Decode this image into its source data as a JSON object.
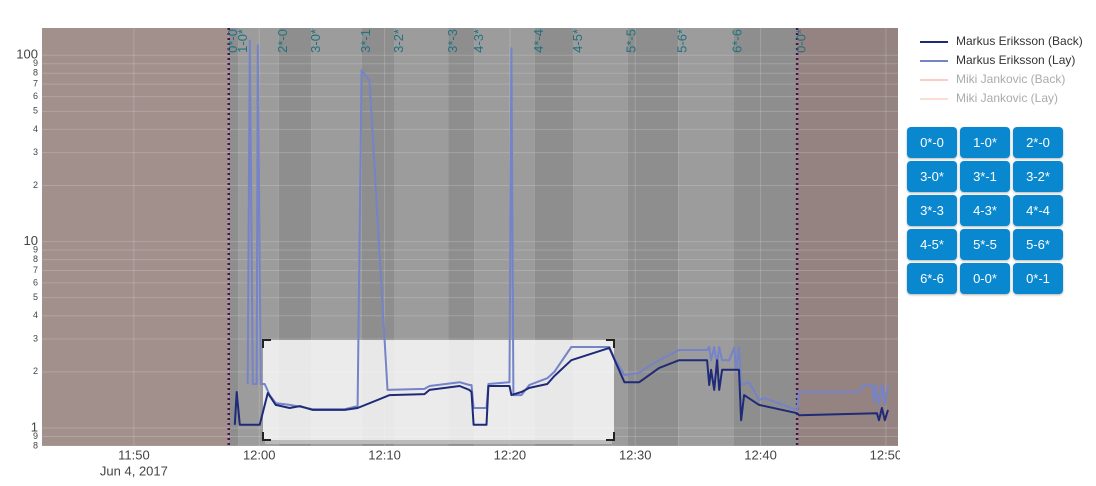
{
  "chart_data": {
    "type": "line",
    "yscale": "log",
    "ylim": [
      0.8,
      140
    ],
    "yticks": [
      100,
      {
        "value": 90,
        "label": "9"
      },
      {
        "value": 80,
        "label": "8"
      },
      {
        "value": 70,
        "label": "7"
      },
      {
        "value": 60,
        "label": "6"
      },
      {
        "value": 50,
        "label": "5"
      },
      {
        "value": 40,
        "label": "4"
      },
      {
        "value": 30,
        "label": "3"
      },
      {
        "value": 20,
        "label": "2"
      },
      10,
      9,
      8,
      7,
      6,
      5,
      4,
      3,
      2,
      1,
      {
        "value": 0.9,
        "label": "9"
      },
      {
        "value": 0.8,
        "label": "8"
      }
    ],
    "xlim": [
      "11:42:40",
      "12:50:58"
    ],
    "xticks": [
      {
        "value": "11:50:00",
        "label": "11:50"
      },
      {
        "value": "12:00:00",
        "label": "12:00"
      },
      {
        "value": "12:10:00",
        "label": "12:10"
      },
      {
        "value": "12:20:00",
        "label": "12:20"
      },
      {
        "value": "12:30:00",
        "label": "12:30"
      },
      {
        "value": "12:40:00",
        "label": "12:40"
      },
      {
        "value": "12:50:00",
        "label": "12:50"
      }
    ],
    "x_date_label": "Jun 4, 2017",
    "grid": true,
    "legend": "right",
    "annotations": [
      {
        "x": "11:57:34",
        "text": "0*-0"
      },
      {
        "x": "11:58:22",
        "text": "1-0*"
      },
      {
        "x": "12:01:33",
        "text": "2*-0"
      },
      {
        "x": "12:04:11",
        "text": "3-0*"
      },
      {
        "x": "12:08:10",
        "text": "3*-1"
      },
      {
        "x": "12:10:48",
        "text": "3-2*"
      },
      {
        "x": "12:15:06",
        "text": "3*-3"
      },
      {
        "x": "12:17:10",
        "text": "4-3*"
      },
      {
        "x": "12:21:57",
        "text": "4*-4"
      },
      {
        "x": "12:25:04",
        "text": "4-5*"
      },
      {
        "x": "12:29:22",
        "text": "5*-5"
      },
      {
        "x": "12:33:26",
        "text": "5-6*"
      },
      {
        "x": "12:37:49",
        "text": "6*-6"
      },
      {
        "x": "12:42:55",
        "text": "0-0*"
      }
    ],
    "series": [
      {
        "name": "Markus Eriksson (Back)",
        "color": "#1f2a78",
        "visible": true,
        "x": [
          "11:58:03",
          "11:58:12",
          "11:58:27",
          "12:00:02",
          "12:00:41",
          "12:01:19",
          "12:02:26",
          "12:03:14",
          "12:04:16",
          "12:06:49",
          "12:07:51",
          "12:10:24",
          "12:13:11",
          "12:13:35",
          "12:15:59",
          "12:16:46",
          "12:16:56",
          "12:17:06",
          "12:18:08",
          "12:18:17",
          "12:19:58",
          "12:20:07",
          "12:20:55",
          "12:21:33",
          "12:22:59",
          "12:23:33",
          "12:24:54",
          "12:27:56",
          "12:29:08",
          "12:30:19",
          "12:31:07",
          "12:31:55",
          "12:33:30",
          "12:35:44",
          "12:35:54",
          "12:36:03",
          "12:36:18",
          "12:36:32",
          "12:36:42",
          "12:36:56",
          "12:38:17",
          "12:38:27",
          "12:38:41",
          "12:39:53",
          "12:42:55",
          "12:43:04",
          "12:49:17",
          "12:49:27",
          "12:49:41",
          "12:49:55",
          "12:50:10"
        ],
        "values": [
          1.04,
          1.56,
          1.04,
          1.04,
          1.54,
          1.33,
          1.28,
          1.31,
          1.25,
          1.25,
          1.28,
          1.5,
          1.52,
          1.6,
          1.68,
          1.6,
          1.56,
          1.04,
          1.04,
          1.68,
          1.68,
          1.5,
          1.56,
          1.64,
          1.72,
          1.9,
          2.31,
          2.69,
          1.76,
          1.76,
          1.92,
          2.1,
          2.31,
          2.31,
          1.7,
          2.05,
          1.6,
          2.31,
          1.6,
          2.05,
          2.05,
          1.1,
          1.5,
          1.33,
          1.2,
          1.17,
          1.2,
          1.1,
          1.28,
          1.1,
          1.25
        ]
      },
      {
        "name": "Markus Eriksson (Lay)",
        "color": "#7583c8",
        "visible": true,
        "x": [
          "11:59:05",
          "11:59:15",
          "11:59:29",
          "11:59:48",
          "11:59:53",
          "12:00:07",
          "12:00:26",
          "12:00:50",
          "12:01:19",
          "12:02:26",
          "12:03:14",
          "12:04:16",
          "12:06:49",
          "12:07:51",
          "12:08:10",
          "12:08:48",
          "12:10:14",
          "12:13:11",
          "12:13:35",
          "12:15:59",
          "12:16:46",
          "12:16:56",
          "12:17:06",
          "12:18:08",
          "12:18:17",
          "12:19:58",
          "12:20:07",
          "12:20:17",
          "12:20:55",
          "12:21:33",
          "12:22:59",
          "12:23:33",
          "12:24:54",
          "12:27:56",
          "12:28:20",
          "12:29:08",
          "12:30:19",
          "12:31:07",
          "12:31:55",
          "12:33:30",
          "12:35:44",
          "12:35:54",
          "12:36:03",
          "12:36:18",
          "12:36:32",
          "12:36:42",
          "12:36:56",
          "12:37:30",
          "12:37:53",
          "12:38:03",
          "12:38:17",
          "12:38:27",
          "12:39:05",
          "12:39:53",
          "12:40:17",
          "12:42:55",
          "12:43:04",
          "12:43:28",
          "12:47:51",
          "12:48:15",
          "12:48:53",
          "12:49:03",
          "12:49:12",
          "12:49:27",
          "12:49:41",
          "12:49:55",
          "12:50:10"
        ],
        "values": [
          1.72,
          120,
          1.72,
          1.72,
          113,
          1.72,
          1.72,
          1.5,
          1.36,
          1.33,
          1.3,
          1.26,
          1.26,
          1.31,
          83,
          73,
          1.6,
          1.62,
          1.68,
          1.76,
          1.7,
          1.7,
          1.28,
          1.28,
          1.72,
          1.76,
          109,
          1.5,
          1.5,
          1.7,
          1.85,
          2.0,
          2.72,
          2.72,
          2.37,
          1.92,
          1.98,
          2.15,
          2.31,
          2.62,
          2.62,
          2.72,
          2.31,
          2.72,
          2.18,
          2.72,
          2.31,
          2.31,
          2.69,
          2.05,
          2.72,
          1.7,
          1.76,
          1.41,
          1.45,
          1.25,
          1.56,
          1.56,
          1.56,
          1.7,
          1.7,
          1.38,
          1.7,
          1.33,
          1.7,
          1.33,
          1.7
        ]
      },
      {
        "name": "Miki Jankovic (Back)",
        "color": "#f4a08a",
        "visible": false,
        "x": [],
        "values": []
      },
      {
        "name": "Miki Jankovic (Lay)",
        "color": "#f8bfa8",
        "visible": false,
        "x": [],
        "values": []
      }
    ]
  },
  "controls": {
    "buttons": [
      "0*-0",
      "1-0*",
      "2*-0",
      "3-0*",
      "3*-1",
      "3-2*",
      "3*-3",
      "4-3*",
      "4*-4",
      "4-5*",
      "5*-5",
      "5-6*",
      "6*-6",
      "0-0*",
      "0*-1"
    ]
  }
}
